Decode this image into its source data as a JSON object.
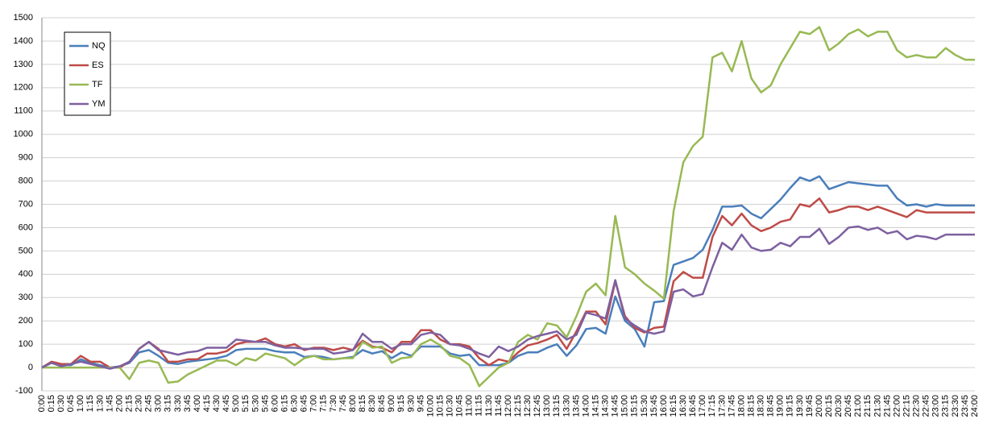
{
  "chart_data": {
    "type": "line",
    "categories": [
      "0:00",
      "0:15",
      "0:30",
      "0:45",
      "1:00",
      "1:15",
      "1:30",
      "1:45",
      "2:00",
      "2:15",
      "2:30",
      "2:45",
      "3:00",
      "3:15",
      "3:30",
      "3:45",
      "4:00",
      "4:15",
      "4:30",
      "4:45",
      "5:00",
      "5:15",
      "5:30",
      "5:45",
      "6:00",
      "6:15",
      "6:30",
      "6:45",
      "7:00",
      "7:15",
      "7:30",
      "7:45",
      "8:00",
      "8:15",
      "8:30",
      "8:45",
      "9:00",
      "9:15",
      "9:30",
      "9:45",
      "10:00",
      "10:15",
      "10:30",
      "10:45",
      "11:00",
      "11:15",
      "11:30",
      "11:45",
      "12:00",
      "12:15",
      "12:30",
      "12:45",
      "13:00",
      "13:15",
      "13:30",
      "13:45",
      "14:00",
      "14:15",
      "14:30",
      "14:45",
      "15:00",
      "15:15",
      "15:30",
      "15:45",
      "16:00",
      "16:15",
      "16:30",
      "16:45",
      "17:00",
      "17:15",
      "17:30",
      "17:45",
      "18:00",
      "18:15",
      "18:30",
      "18:45",
      "19:00",
      "19:15",
      "19:30",
      "19:45",
      "20:00",
      "20:15",
      "20:30",
      "20:45",
      "21:00",
      "21:15",
      "21:30",
      "21:45",
      "22:00",
      "22:15",
      "22:30",
      "22:45",
      "23:00",
      "23:15",
      "23:30",
      "23:45",
      "24:00"
    ],
    "series": [
      {
        "name": "NQ",
        "color": "#4a7ebb",
        "values": [
          0,
          20,
          10,
          10,
          35,
          20,
          10,
          0,
          5,
          20,
          65,
          75,
          50,
          20,
          15,
          25,
          30,
          35,
          40,
          50,
          75,
          80,
          80,
          80,
          70,
          65,
          65,
          45,
          50,
          45,
          35,
          40,
          45,
          75,
          60,
          70,
          40,
          65,
          50,
          90,
          90,
          90,
          60,
          50,
          55,
          10,
          10,
          10,
          20,
          50,
          65,
          65,
          85,
          100,
          50,
          95,
          165,
          170,
          145,
          305,
          200,
          165,
          90,
          280,
          285,
          440,
          455,
          470,
          505,
          590,
          690,
          690,
          695,
          660,
          640,
          680,
          720,
          770,
          815,
          800,
          820,
          765,
          780,
          795,
          790,
          785,
          780,
          780,
          725,
          695,
          700,
          690,
          700,
          695,
          695,
          695,
          695
        ]
      },
      {
        "name": "ES",
        "color": "#be4b48",
        "values": [
          0,
          25,
          15,
          15,
          50,
          25,
          25,
          0,
          0,
          25,
          80,
          110,
          80,
          25,
          25,
          35,
          35,
          60,
          60,
          70,
          100,
          110,
          110,
          125,
          100,
          90,
          100,
          75,
          85,
          85,
          75,
          85,
          75,
          115,
          90,
          85,
          65,
          110,
          110,
          160,
          160,
          120,
          100,
          100,
          90,
          40,
          10,
          35,
          25,
          65,
          95,
          105,
          120,
          140,
          80,
          155,
          240,
          240,
          185,
          370,
          220,
          170,
          150,
          170,
          175,
          370,
          410,
          385,
          385,
          560,
          650,
          610,
          660,
          610,
          585,
          600,
          625,
          635,
          700,
          690,
          725,
          665,
          675,
          690,
          690,
          675,
          690,
          675,
          660,
          645,
          675,
          665,
          665,
          665,
          665,
          665,
          665
        ]
      },
      {
        "name": "TF",
        "color": "#98b954",
        "values": [
          0,
          0,
          0,
          0,
          0,
          0,
          0,
          0,
          0,
          -50,
          20,
          30,
          20,
          -65,
          -60,
          -30,
          -10,
          10,
          30,
          30,
          10,
          40,
          30,
          60,
          50,
          40,
          10,
          40,
          50,
          35,
          35,
          40,
          40,
          110,
          85,
          90,
          20,
          40,
          45,
          100,
          120,
          95,
          50,
          40,
          10,
          -80,
          -40,
          0,
          20,
          110,
          140,
          120,
          190,
          180,
          130,
          220,
          325,
          360,
          310,
          650,
          430,
          400,
          360,
          330,
          295,
          670,
          880,
          950,
          990,
          1330,
          1350,
          1270,
          1400,
          1240,
          1180,
          1210,
          1300,
          1370,
          1440,
          1430,
          1460,
          1360,
          1390,
          1430,
          1450,
          1420,
          1440,
          1440,
          1360,
          1330,
          1340,
          1330,
          1330,
          1370,
          1340,
          1320,
          1320
        ]
      },
      {
        "name": "YM",
        "color": "#7d60a0",
        "values": [
          0,
          20,
          5,
          15,
          25,
          15,
          5,
          -5,
          5,
          25,
          80,
          110,
          75,
          65,
          55,
          65,
          70,
          85,
          85,
          85,
          120,
          115,
          110,
          110,
          95,
          85,
          85,
          80,
          80,
          80,
          60,
          65,
          75,
          145,
          110,
          110,
          80,
          100,
          100,
          140,
          150,
          140,
          100,
          95,
          80,
          60,
          45,
          90,
          70,
          90,
          120,
          135,
          145,
          155,
          120,
          140,
          235,
          225,
          210,
          375,
          210,
          180,
          155,
          145,
          155,
          325,
          335,
          305,
          315,
          430,
          535,
          505,
          570,
          515,
          500,
          505,
          535,
          520,
          560,
          560,
          595,
          530,
          560,
          600,
          605,
          590,
          600,
          575,
          585,
          550,
          565,
          560,
          550,
          570,
          570,
          570,
          570
        ]
      }
    ],
    "ylim": [
      -100,
      1500
    ],
    "yticks": [
      -100,
      0,
      100,
      200,
      300,
      400,
      500,
      600,
      700,
      800,
      900,
      1000,
      1100,
      1200,
      1300,
      1400,
      1500
    ],
    "grid": true
  }
}
